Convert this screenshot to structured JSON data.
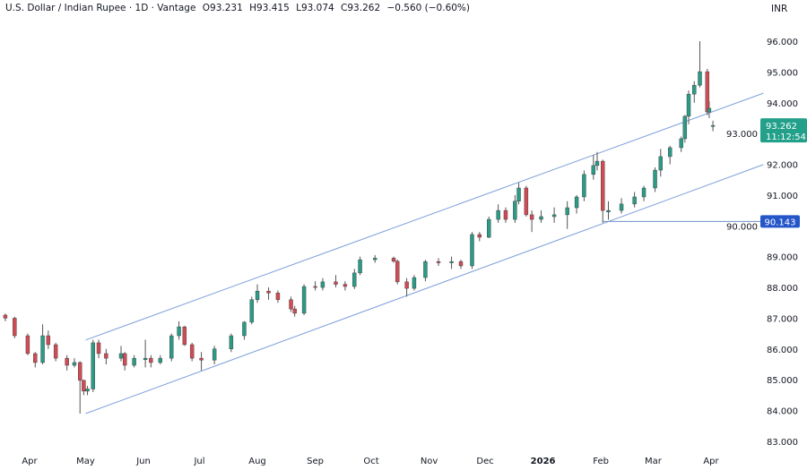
{
  "header": {
    "symbol": "U.S. Dollar / Indian Rupee · 1D · Vantage",
    "open": "O93.231",
    "high": "H93.415",
    "low": "L93.074",
    "close": "C93.262",
    "change": "−0.560 (−0.60%)",
    "currency": "INR"
  },
  "colors": {
    "up": "#2b9b85",
    "down": "#cf4b55",
    "channel": "#7d9fd9",
    "last_price_bg": "#22a08a",
    "level_bg": "#2556c9"
  },
  "chart_data": {
    "type": "candlestick",
    "ylim": [
      82.8,
      96.6
    ],
    "y_ticks": [
      "83.000",
      "84.000",
      "85.000",
      "86.000",
      "87.000",
      "88.000",
      "89.000",
      "90.000",
      "91.000",
      "92.000",
      "93.000",
      "94.000",
      "95.000",
      "96.000"
    ],
    "x_ticks": [
      {
        "label": "Apr",
        "date": "2025-04-01"
      },
      {
        "label": "May",
        "date": "2025-05-01"
      },
      {
        "label": "Jun",
        "date": "2025-06-01"
      },
      {
        "label": "Jul",
        "date": "2025-07-01"
      },
      {
        "label": "Aug",
        "date": "2025-08-01"
      },
      {
        "label": "Sep",
        "date": "2025-09-01"
      },
      {
        "label": "Oct",
        "date": "2025-10-01"
      },
      {
        "label": "Nov",
        "date": "2025-11-01"
      },
      {
        "label": "Dec",
        "date": "2025-12-01"
      },
      {
        "label": "2026",
        "date": "2026-01-01",
        "bold": true
      },
      {
        "label": "Feb",
        "date": "2026-02-01"
      },
      {
        "label": "Mar",
        "date": "2026-03-01"
      },
      {
        "label": "Apr",
        "date": "2026-04-01"
      }
    ],
    "candles": [
      [
        "2025-03-19",
        87.1,
        87.15,
        86.9,
        87.0
      ],
      [
        "2025-03-24",
        87.0,
        87.05,
        86.35,
        86.43
      ],
      [
        "2025-03-31",
        86.43,
        86.5,
        85.8,
        85.85
      ],
      [
        "2025-04-04",
        85.85,
        85.9,
        85.4,
        85.56
      ],
      [
        "2025-04-08",
        85.56,
        86.8,
        85.5,
        86.43
      ],
      [
        "2025-04-11",
        86.43,
        86.6,
        86.0,
        86.14
      ],
      [
        "2025-04-15",
        86.14,
        86.2,
        85.6,
        85.7
      ],
      [
        "2025-04-21",
        85.7,
        85.8,
        85.3,
        85.47
      ],
      [
        "2025-04-25",
        85.47,
        85.7,
        85.4,
        85.56
      ],
      [
        "2025-04-28",
        85.56,
        85.6,
        83.9,
        84.98
      ],
      [
        "2025-04-30",
        84.98,
        85.0,
        84.5,
        84.63
      ],
      [
        "2025-05-02",
        84.63,
        84.8,
        84.5,
        84.7
      ],
      [
        "2025-05-05",
        84.7,
        86.3,
        84.6,
        86.2
      ],
      [
        "2025-05-08",
        86.2,
        86.3,
        85.7,
        85.85
      ],
      [
        "2025-05-12",
        85.85,
        86.0,
        85.5,
        85.7
      ],
      [
        "2025-05-20",
        85.7,
        86.1,
        85.6,
        85.85
      ],
      [
        "2025-05-22",
        85.85,
        85.9,
        85.3,
        85.47
      ],
      [
        "2025-05-27",
        85.47,
        85.8,
        85.4,
        85.7
      ],
      [
        "2025-06-02",
        85.65,
        86.3,
        85.4,
        85.7
      ],
      [
        "2025-06-05",
        85.7,
        85.8,
        85.4,
        85.56
      ],
      [
        "2025-06-10",
        85.56,
        85.8,
        85.5,
        85.7
      ],
      [
        "2025-06-16",
        85.7,
        86.5,
        85.6,
        86.43
      ],
      [
        "2025-06-20",
        86.43,
        86.9,
        86.3,
        86.72
      ],
      [
        "2025-06-23",
        86.72,
        86.75,
        86.1,
        86.14
      ],
      [
        "2025-06-27",
        86.14,
        86.2,
        85.6,
        85.7
      ],
      [
        "2025-07-02",
        85.7,
        85.9,
        85.3,
        85.64
      ],
      [
        "2025-07-09",
        85.64,
        86.1,
        85.5,
        86.0
      ],
      [
        "2025-07-18",
        86.0,
        86.5,
        85.9,
        86.43
      ],
      [
        "2025-07-25",
        86.43,
        86.9,
        86.3,
        86.87
      ],
      [
        "2025-07-29",
        86.87,
        87.7,
        86.8,
        87.6
      ],
      [
        "2025-08-01",
        87.6,
        88.1,
        87.5,
        87.88
      ],
      [
        "2025-08-07",
        87.88,
        88.0,
        87.6,
        87.82
      ],
      [
        "2025-08-12",
        87.82,
        87.9,
        87.5,
        87.6
      ],
      [
        "2025-08-19",
        87.6,
        87.7,
        87.2,
        87.3
      ],
      [
        "2025-08-21",
        87.3,
        87.4,
        87.05,
        87.16
      ],
      [
        "2025-08-26",
        87.16,
        88.1,
        87.1,
        88.03
      ],
      [
        "2025-09-01",
        88.03,
        88.2,
        87.9,
        88.0
      ],
      [
        "2025-09-05",
        88.0,
        88.3,
        87.9,
        88.18
      ],
      [
        "2025-09-12",
        88.18,
        88.4,
        88.0,
        88.1
      ],
      [
        "2025-09-17",
        88.1,
        88.2,
        87.9,
        88.03
      ],
      [
        "2025-09-22",
        88.03,
        88.6,
        87.95,
        88.47
      ],
      [
        "2025-09-25",
        88.47,
        89.0,
        88.4,
        88.9
      ],
      [
        "2025-10-03",
        88.9,
        89.05,
        88.8,
        88.95
      ],
      [
        "2025-10-13",
        88.95,
        89.0,
        88.8,
        88.85
      ],
      [
        "2025-10-15",
        88.85,
        88.9,
        88.1,
        88.18
      ],
      [
        "2025-10-20",
        88.18,
        88.3,
        87.7,
        87.97
      ],
      [
        "2025-10-24",
        87.97,
        88.4,
        87.9,
        88.32
      ],
      [
        "2025-10-30",
        88.32,
        88.9,
        88.2,
        88.84
      ],
      [
        "2025-11-06",
        88.84,
        88.95,
        88.7,
        88.8
      ],
      [
        "2025-11-13",
        88.8,
        89.0,
        88.6,
        88.84
      ],
      [
        "2025-11-18",
        88.84,
        88.9,
        88.6,
        88.7
      ],
      [
        "2025-11-24",
        88.7,
        89.8,
        88.6,
        89.72
      ],
      [
        "2025-11-28",
        89.72,
        89.8,
        89.5,
        89.63
      ],
      [
        "2025-12-03",
        89.63,
        90.3,
        89.6,
        90.21
      ],
      [
        "2025-12-08",
        90.21,
        90.7,
        90.1,
        90.5
      ],
      [
        "2025-12-12",
        90.5,
        90.6,
        90.1,
        90.21
      ],
      [
        "2025-12-17",
        90.21,
        91.0,
        90.1,
        90.8
      ],
      [
        "2025-12-19",
        90.8,
        91.4,
        90.7,
        91.23
      ],
      [
        "2025-12-23",
        91.23,
        91.3,
        90.3,
        90.36
      ],
      [
        "2025-12-26",
        90.36,
        90.5,
        89.8,
        90.21
      ],
      [
        "2025-12-31",
        90.21,
        90.5,
        90.1,
        90.3
      ],
      [
        "2026-01-07",
        90.3,
        90.6,
        90.1,
        90.36
      ],
      [
        "2026-01-14",
        90.36,
        90.8,
        89.9,
        90.59
      ],
      [
        "2026-01-19",
        90.59,
        91.0,
        90.4,
        90.94
      ],
      [
        "2026-01-23",
        90.94,
        91.8,
        90.8,
        91.67
      ],
      [
        "2026-01-28",
        91.67,
        92.3,
        91.5,
        91.96
      ],
      [
        "2026-01-30",
        91.96,
        92.4,
        91.8,
        92.1
      ],
      [
        "2026-02-02",
        92.1,
        92.15,
        90.1,
        90.5
      ],
      [
        "2026-02-05",
        90.45,
        90.8,
        90.2,
        90.5
      ],
      [
        "2026-02-12",
        90.5,
        90.9,
        90.4,
        90.71
      ],
      [
        "2026-02-19",
        90.71,
        91.1,
        90.6,
        90.94
      ],
      [
        "2026-02-24",
        90.94,
        91.3,
        90.8,
        91.23
      ],
      [
        "2026-03-02",
        91.23,
        91.9,
        91.1,
        91.81
      ],
      [
        "2026-03-05",
        91.81,
        92.5,
        91.6,
        92.25
      ],
      [
        "2026-03-10",
        92.25,
        92.6,
        92.0,
        92.54
      ],
      [
        "2026-03-16",
        92.54,
        92.9,
        92.4,
        92.83
      ],
      [
        "2026-03-18",
        92.83,
        93.6,
        92.7,
        93.56
      ],
      [
        "2026-03-20",
        93.56,
        94.4,
        93.3,
        94.28
      ],
      [
        "2026-03-23",
        94.28,
        94.7,
        94.0,
        94.57
      ],
      [
        "2026-03-26",
        94.57,
        96.0,
        94.5,
        95.01
      ],
      [
        "2026-03-30",
        95.01,
        95.1,
        93.6,
        93.7
      ],
      [
        "2026-03-31",
        93.7,
        94.05,
        93.5,
        93.82
      ],
      [
        "2026-04-02",
        93.231,
        93.415,
        93.074,
        93.262
      ]
    ],
    "channel_upper": [
      [
        "2025-05-01",
        86.29
      ],
      [
        "2026-04-29",
        94.31
      ]
    ],
    "channel_lower": [
      [
        "2025-05-01",
        83.9
      ],
      [
        "2026-04-29",
        91.99
      ]
    ],
    "horizontal_level": {
      "from": "2026-02-02",
      "price": 90.143,
      "label": "90.143"
    },
    "last_price": {
      "price": 93.262,
      "label": "93.262",
      "countdown": "11:12:54"
    }
  }
}
